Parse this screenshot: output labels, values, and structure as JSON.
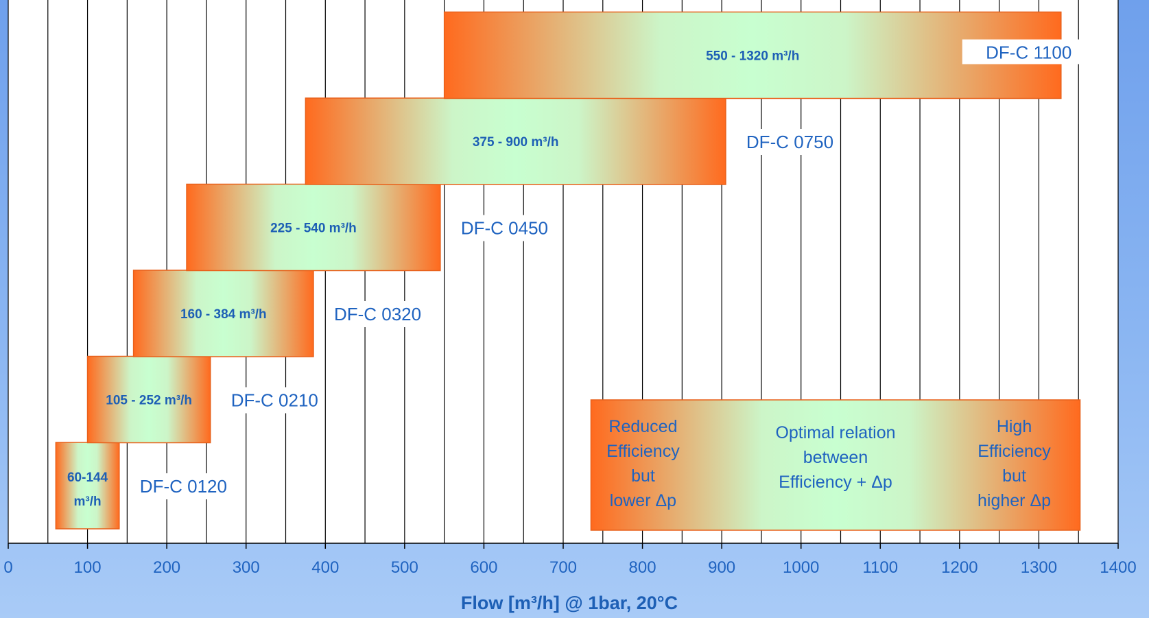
{
  "chart_data": {
    "type": "bar",
    "orientation": "horizontal-range",
    "xlabel": "Flow [m³/h] @ 1bar, 20°C",
    "xlim": [
      0,
      1400
    ],
    "x_ticks": [
      "0",
      "100",
      "200",
      "300",
      "400",
      "500",
      "600",
      "700",
      "800",
      "900",
      "1000",
      "1100",
      "1200",
      "1300",
      "1400"
    ],
    "grid": true,
    "grid_step": 50,
    "series": [
      {
        "model": "DF-C 0120",
        "range_label": "60-144 m³/h",
        "start": 60,
        "end": 140
      },
      {
        "model": "DF-C 0210",
        "range_label": "105 - 252 m³/h",
        "start": 100,
        "end": 255
      },
      {
        "model": "DF-C 0320",
        "range_label": "160 - 384 m³/h",
        "start": 158,
        "end": 385
      },
      {
        "model": "DF-C 0450",
        "range_label": "225 - 540 m³/h",
        "start": 225,
        "end": 545
      },
      {
        "model": "DF-C 0750",
        "range_label": "375 - 900 m³/h",
        "start": 375,
        "end": 905
      },
      {
        "model": "DF-C 1100",
        "range_label": "550 - 1320 m³/h",
        "start": 550,
        "end": 1328
      }
    ],
    "legend": {
      "start": 735,
      "end": 1352,
      "left": [
        "Reduced",
        "Efficiency",
        "but",
        "lower Δp"
      ],
      "center": [
        "Optimal relation",
        "between",
        "Efficiency + Δp"
      ],
      "right": [
        "High",
        "Efficiency",
        "but",
        "higher Δp"
      ]
    },
    "colors": {
      "edge": "#ff6a1e",
      "center": "#c8ffd0",
      "border": "#e8601a",
      "grid": "#000000",
      "text": "#1f63c0"
    }
  }
}
